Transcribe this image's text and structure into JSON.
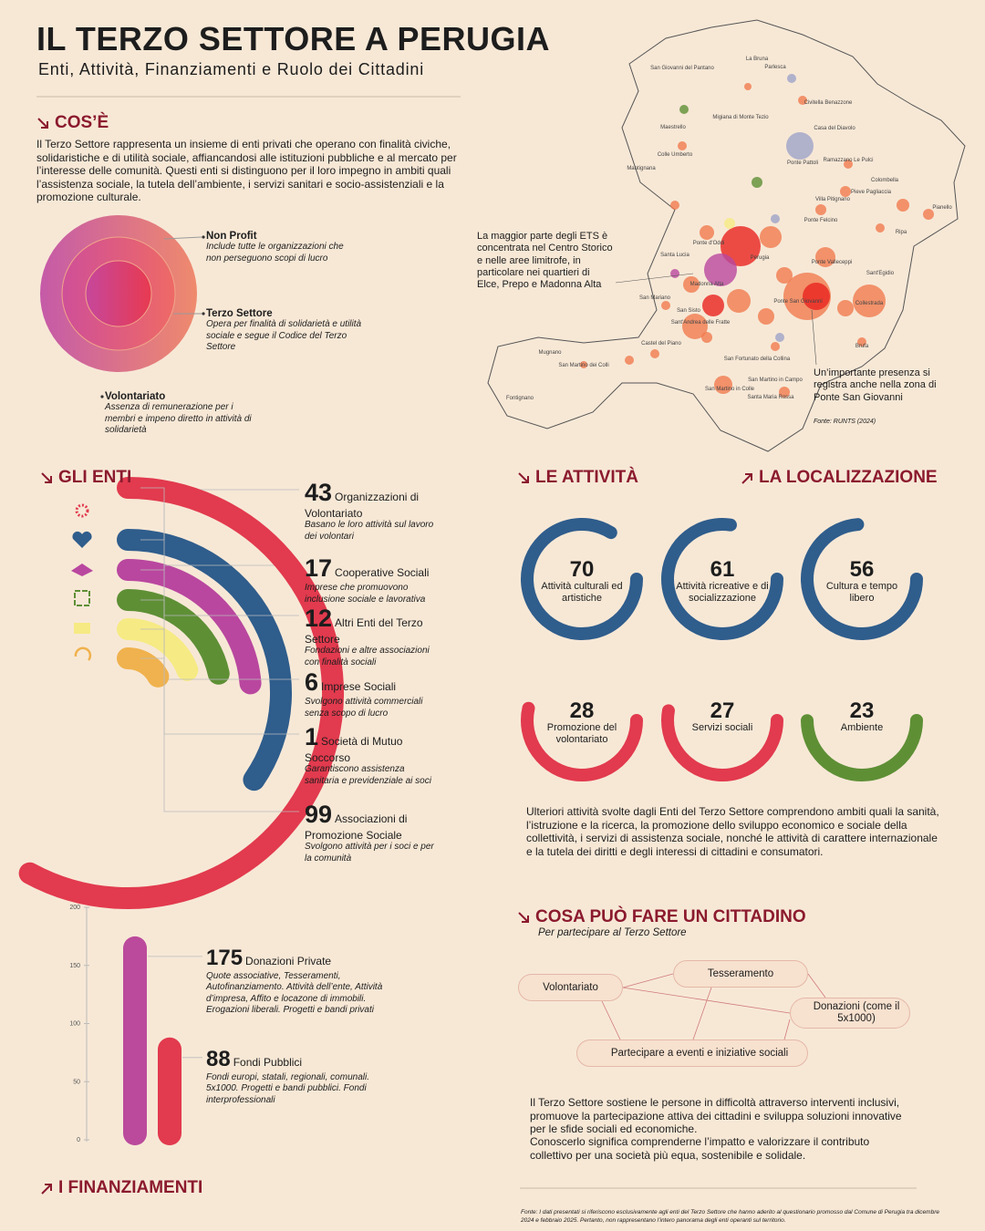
{
  "header": {
    "title": "IL TERZO SETTORE A PERUGIA",
    "subtitle": "Enti, Attività, Finanziamenti e Ruolo dei Cittadini"
  },
  "cose": {
    "heading": "COS’È",
    "text": "Il Terzo Settore rappresenta un insieme di enti privati che operano con finalità civiche, solidaristiche e di utilità sociale, affiancandosi alle istituzioni pubbliche e al mercato per l’interesse delle comunità. Questi enti si distinguono per il loro impegno in ambiti quali l’assistenza sociale, la tutela dell’ambiente, i servizi sanitari e socio-assistenziali e la promozione culturale.",
    "rings": [
      {
        "name": "Non Profit",
        "desc": "Include tutte le organizzazioni che non perseguono scopi di lucro"
      },
      {
        "name": "Terzo Settore",
        "desc": "Opera per finalità di solidarietà e utilità sociale e segue il Codice del Terzo Settore"
      },
      {
        "name": "Volontariato",
        "desc": "Assenza di remunerazione per i membri e impeno diretto in attività di solidarietà"
      }
    ]
  },
  "map": {
    "heading": "LA LOCALIZZAZIONE",
    "note": "La maggior parte degli ETS è concentrata nel Centro Storico e nelle aree limitrofe, in particolare nei quartieri di Elce, Prepo e Madonna Alta",
    "note2": "Un’importante presenza si registra anche nella zona di Ponte San Giovanni",
    "source": "Fonte: RUNTS (2024)",
    "places": [
      "San Giovanni del Pantano",
      "La Bruna",
      "Parlesca",
      "Civitella Benazzone",
      "Migiana di Monte Tezio",
      "Maestrello",
      "Casa del Diavolo",
      "Colle Umberto",
      "Ramazzano Le Pulci",
      "Mantignana",
      "Ponte Pattoli",
      "Colombella",
      "Pieve Pagliaccia",
      "Pianello",
      "Villa Pitignano",
      "Ponte Felcino",
      "Ripa",
      "Ponte d'Oddi",
      "Santa Lucia",
      "Perugia",
      "Ponte Valleceppi",
      "Sant'Egidio",
      "Madonna Alta",
      "San Mariano",
      "Collestrada",
      "Ponte San Giovanni",
      "San Sisto",
      "Sant'Andrea delle Fratte",
      "Castel del Piano",
      "Mugnano",
      "Brufa",
      "San Fortunato della Collina",
      "San Martino dei Colli",
      "San Martino in Campo",
      "San Martino in Colle",
      "Santa Maria Rossa",
      "Fontignano"
    ]
  },
  "enti": {
    "heading": "GLI ENTI",
    "items": [
      {
        "value": 43,
        "name": "Organizzazioni di Volontariato",
        "desc": "Basano le loro attività sul lavoro dei volontari",
        "color": "#2f5d8c"
      },
      {
        "value": 17,
        "name": "Cooperative Sociali",
        "desc": "Imprese che promuovono inclusione sociale e lavorativa",
        "color": "#b9479f"
      },
      {
        "value": 12,
        "name": "Altri Enti del Terzo Settore",
        "desc": "Fondazioni e altre associazioni con finalità sociali",
        "color": "#5e8f35"
      },
      {
        "value": 6,
        "name": "Imprese Sociali",
        "desc": "Svolgono attività commerciali senza scopo di lucro",
        "color": "#f6ea84"
      },
      {
        "value": 1,
        "name": "Società di Mutuo Soccorso",
        "desc": "Garantiscono assistenza sanitaria e previdenziale ai soci",
        "color": "#f0b24e"
      },
      {
        "value": 99,
        "name": "Associazioni di Promozione Sociale",
        "desc": "Svolgono attività per i soci e per la comunità",
        "color": "#e23a4e"
      }
    ]
  },
  "attivita": {
    "heading": "LE ATTIVITÀ",
    "items": [
      {
        "value": 70,
        "label": "Attività culturali ed artistiche",
        "color": "#2f5d8c"
      },
      {
        "value": 61,
        "label": "Attività ricreative e di socializzazione",
        "color": "#2f5d8c"
      },
      {
        "value": 56,
        "label": "Cultura e tempo libero",
        "color": "#2f5d8c"
      },
      {
        "value": 28,
        "label": "Promozione del volontariato",
        "color": "#e23a4e"
      },
      {
        "value": 27,
        "label": "Servizi sociali",
        "color": "#e23a4e"
      },
      {
        "value": 23,
        "label": "Ambiente",
        "color": "#5e8f35"
      }
    ],
    "note": "Ulteriori attività svolte dagli Enti del Terzo Settore comprendono ambiti quali la sanità, l’istruzione e la ricerca, la promozione dello sviluppo economico e sociale della collettività, i servizi di assistenza sociale, nonché le attività di carattere internazionale e la tutela dei diritti e degli interessi di cittadini e consumatori."
  },
  "finanziamenti": {
    "heading": "I FINANZIAMENTI",
    "ylim": [
      0,
      200
    ],
    "yticks": [
      0,
      50,
      100,
      150,
      200
    ],
    "bars": [
      {
        "value": 175,
        "name": "Donazioni Private",
        "desc": "Quote associative, Tesseramenti, Autofinanziamento. Attività dell’ente, Attività d’impresa, Affito e locazone di immobili. Erogazioni liberali. Progetti e bandi privati",
        "color": "#bb4a9c"
      },
      {
        "value": 88,
        "name": "Fondi Pubblici",
        "desc": "Fondi europi, statali, regionali, comunali. 5x1000. Progetti e bandi pubblici. Fondi interprofessionali",
        "color": "#e23a4e"
      }
    ]
  },
  "cittadino": {
    "heading": "COSA PUÒ FARE UN CITTADINO",
    "subtitle": "Per partecipare al Terzo Settore",
    "nodes": [
      "Volontariato",
      "Tesseramento",
      "Donazioni (come il 5x1000)",
      "Partecipare a eventi e iniziative sociali"
    ],
    "text": [
      "Il Terzo Settore sostiene le persone in difficoltà attraverso interventi inclusivi, promuove la partecipazione attiva dei cittadini e sviluppa soluzioni innovative per le sfide sociali ed economiche.",
      "Conoscerlo significa comprenderne l’impatto e valorizzare il contributo collettivo per una società più equa, sostenibile e solidale."
    ]
  },
  "footer": "Fonte: I dati presentati si riferiscono esclusivamente agli enti del Terzo Settore che hanno aderito al questionario promosso dal Comune di Perugia tra dicembre 2024 e febbraio 2025. Pertanto, non rappresentano l’intero panorama degli enti operanti sul territorio."
}
